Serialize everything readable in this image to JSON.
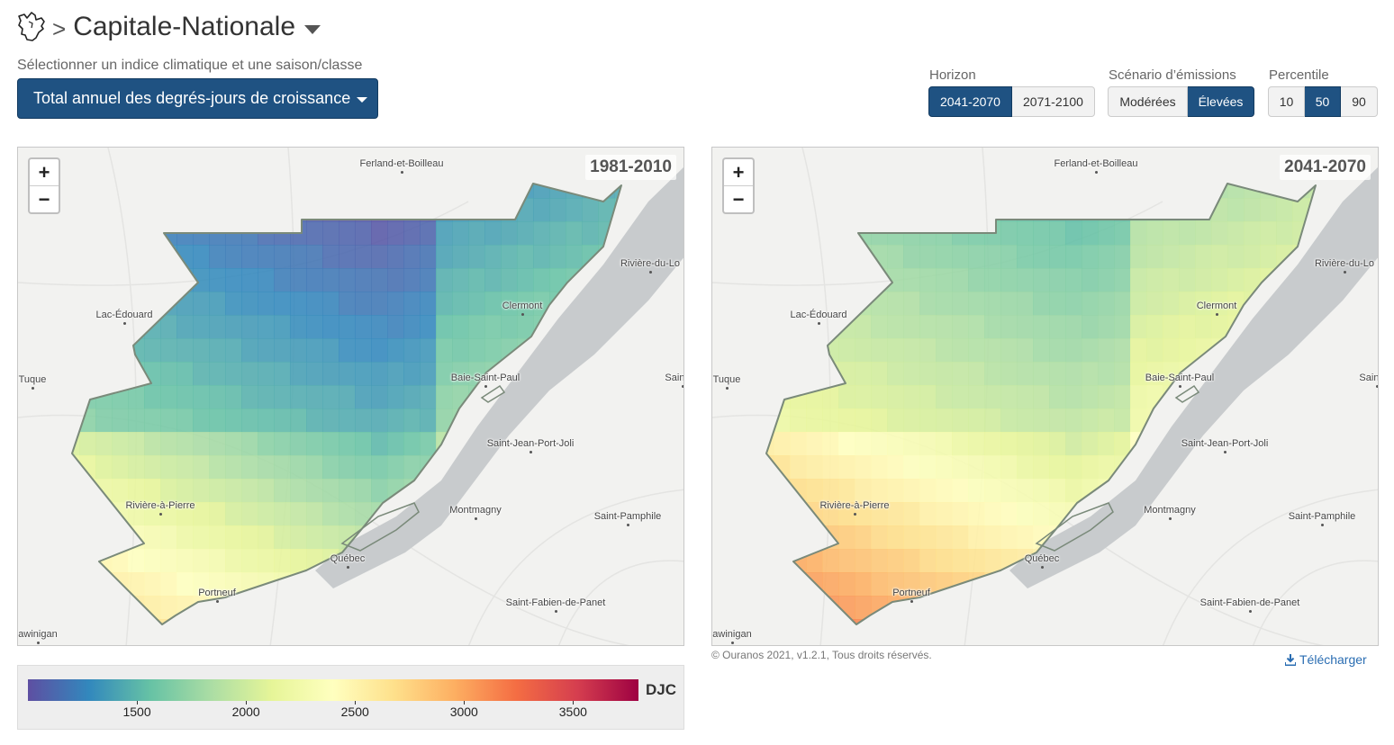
{
  "header": {
    "region_icon": "quebec-map-icon",
    "separator": ">",
    "region_name": "Capitale-Nationale"
  },
  "index_selector": {
    "hint": "Sélectionner un indice climatique et une saison/classe",
    "selected": "Total annuel des degrés-jours de croissance"
  },
  "controls": {
    "horizon": {
      "label": "Horizon",
      "options": [
        "2041-2070",
        "2071-2100"
      ],
      "selected": "2041-2070"
    },
    "scenario": {
      "label": "Scénario d’émissions",
      "options": [
        "Modérées",
        "Élevées"
      ],
      "selected": "Élevées"
    },
    "percentile": {
      "label": "Percentile",
      "options": [
        "10",
        "50",
        "90"
      ],
      "selected": "50"
    }
  },
  "maps": [
    {
      "period": "1981-2010"
    },
    {
      "period": "2041-2070"
    }
  ],
  "zoom": {
    "in": "+",
    "out": "−"
  },
  "cities": [
    "Ferland-et-Boilleau",
    "Rivière-du-Lo",
    "Clermont",
    "Lac-Édouard",
    "Tuque",
    "Baie-Saint-Paul",
    "Saint-At",
    "Saint-Jean-Port-Joli",
    "Rivière-à-Pierre",
    "Montmagny",
    "Saint-Pamphile",
    "Québec",
    "Portneuf",
    "Saint-Fabien-de-Panet",
    "awinigan"
  ],
  "legend": {
    "unit": "DJC",
    "ticks": [
      "1500",
      "2000",
      "2500",
      "3000",
      "3500"
    ],
    "min": 1000,
    "max": 3800,
    "colors": [
      "#5e4fa2",
      "#3288bd",
      "#66c2a5",
      "#abdda4",
      "#e6f598",
      "#ffffbf",
      "#fee08b",
      "#fdae61",
      "#f46d43",
      "#d53e4f",
      "#9e0142"
    ]
  },
  "footer": {
    "copyright": "© Ouranos 2021, v1.2.1, Tous droits réservés.",
    "download": "Télécharger"
  }
}
